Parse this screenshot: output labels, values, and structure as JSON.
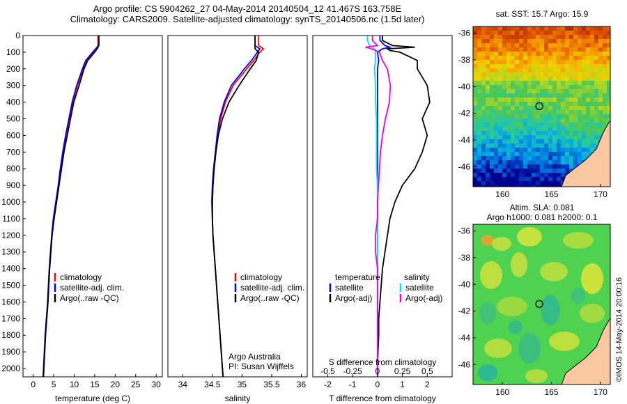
{
  "header": {
    "line1": "Argo profile: CS 5904262_27 04-May-2014 20140504_12 41.467S 163.758E",
    "line2": "Climatology: CARS2009. Satellite-adjusted climatology: synTS_20140506.nc (1.5d later)"
  },
  "depth_ticks": [
    "0",
    "100",
    "200",
    "300",
    "400",
    "500",
    "600",
    "700",
    "800",
    "900",
    "1000",
    "1100",
    "1200",
    "1300",
    "1400",
    "1500",
    "1600",
    "1700",
    "1800",
    "1900",
    "2000"
  ],
  "colors": {
    "climatology": "#ff0000",
    "satellite": "#0000ff",
    "argo": "#000000",
    "s_satellite": "#00e5ee",
    "s_argo": "#ee00ee"
  },
  "chart_data": [
    {
      "type": "line",
      "xlabel": "temperature (deg C)",
      "x_ticks": [
        "0",
        "5",
        "10",
        "15",
        "20",
        "25",
        "30"
      ],
      "xlim": [
        -2.5,
        31.5
      ],
      "ylim": [
        2050,
        0
      ],
      "legend": {
        "position": "lower-left",
        "entries": [
          "climatology",
          "satellite-adj. clim.",
          "Argo(..raw -QC)"
        ]
      },
      "depth": [
        0,
        60,
        80,
        100,
        150,
        200,
        300,
        400,
        500,
        600,
        700,
        800,
        900,
        1000,
        1100,
        1200,
        1300,
        1400,
        1500,
        1600,
        1700,
        1800,
        1900,
        2000,
        2050
      ],
      "series": [
        {
          "name": "climatology",
          "values": [
            15.8,
            15.8,
            15.3,
            14.8,
            13.0,
            12.2,
            10.8,
            9.6,
            8.8,
            8.0,
            7.3,
            6.7,
            6.2,
            5.6,
            5.0,
            4.6,
            4.3,
            4.0,
            3.8,
            3.6,
            3.3,
            3.0,
            2.8,
            2.6,
            2.5
          ]
        },
        {
          "name": "satellite-adj. clim.",
          "values": [
            16.0,
            16.0,
            15.2,
            14.5,
            12.8,
            12.0,
            10.6,
            9.5,
            8.7,
            7.9,
            7.2,
            6.6,
            6.1,
            5.5,
            4.9,
            4.5,
            4.2,
            3.9,
            3.7,
            3.5,
            3.2,
            2.9,
            2.7,
            2.5,
            2.4
          ]
        },
        {
          "name": "Argo(..raw -QC)",
          "values": [
            16.0,
            16.0,
            15.6,
            15.0,
            13.3,
            12.4,
            11.2,
            9.9,
            9.1,
            8.3,
            7.5,
            6.9,
            6.3,
            5.7,
            5.1,
            4.6,
            4.3,
            4.0,
            3.8,
            3.6,
            3.3,
            3.0,
            2.8,
            2.6,
            2.5
          ]
        }
      ]
    },
    {
      "type": "line",
      "xlabel": "salinity",
      "x_ticks": [
        "34",
        "34.5",
        "35",
        "35.5",
        "36"
      ],
      "xlim": [
        33.75,
        36.1
      ],
      "ylim": [
        2050,
        0
      ],
      "legend": {
        "position": "lower-right",
        "entries": [
          "climatology",
          "satellite-adj. clim.",
          "Argo(..raw -QC)"
        ]
      },
      "annotation": [
        "Argo Australia",
        "PI: Susan Wijffels"
      ],
      "depth": [
        0,
        60,
        80,
        100,
        150,
        200,
        300,
        400,
        500,
        600,
        700,
        800,
        900,
        1000,
        1100,
        1200,
        1300,
        1400,
        1500,
        1600,
        1700,
        1800,
        1900,
        2000,
        2050
      ],
      "series": [
        {
          "name": "climatology",
          "values": [
            35.28,
            35.28,
            35.36,
            35.3,
            35.2,
            35.08,
            34.85,
            34.72,
            34.64,
            34.59,
            34.56,
            34.53,
            34.51,
            34.5,
            34.5,
            34.51,
            34.53,
            34.55,
            34.57,
            34.59,
            34.61,
            34.63,
            34.65,
            34.67,
            34.68
          ]
        },
        {
          "name": "satellite-adj. clim.",
          "values": [
            35.22,
            35.22,
            35.3,
            35.26,
            35.16,
            35.04,
            34.82,
            34.7,
            34.62,
            34.58,
            34.55,
            34.52,
            34.5,
            34.49,
            34.5,
            34.51,
            34.53,
            34.55,
            34.57,
            34.59,
            34.61,
            34.63,
            34.65,
            34.67,
            34.68
          ]
        },
        {
          "name": "Argo(..raw -QC)",
          "values": [
            35.22,
            35.22,
            35.22,
            35.28,
            35.24,
            35.14,
            34.95,
            34.78,
            34.67,
            34.6,
            34.56,
            34.53,
            34.51,
            34.5,
            34.5,
            34.51,
            34.53,
            34.55,
            34.57,
            34.59,
            34.61,
            34.63,
            34.65,
            34.67,
            34.68
          ]
        }
      ]
    },
    {
      "type": "line",
      "xlabel": "T difference from climatology",
      "xlabel_top": "S difference from climatology",
      "x_ticks": [
        "-2",
        "-1",
        "0",
        "1",
        "2"
      ],
      "x_ticks_top": [
        "-0.5",
        "-0.25",
        "0",
        "0.25",
        "0.5"
      ],
      "xlim": [
        -2.6,
        3.0
      ],
      "ylim": [
        2050,
        0
      ],
      "legend": {
        "position": "lower-center",
        "temperature_title": "temperature",
        "salinity_title": "salinity",
        "temperature_entries": [
          "satellite",
          "Argo(-adj)"
        ],
        "salinity_entries": [
          "satellite",
          "Argo(-adj)"
        ]
      },
      "depth": [
        0,
        30,
        60,
        70,
        80,
        90,
        100,
        150,
        200,
        300,
        400,
        500,
        600,
        700,
        800,
        900,
        1000,
        1100,
        1200,
        1300,
        1400,
        1500,
        1600,
        1700,
        1800,
        1900,
        2000,
        2050
      ],
      "series": [
        {
          "name": "satellite",
          "group": "temperature",
          "values": [
            0.1,
            0.1,
            0.3,
            0.5,
            0.2,
            0.1,
            0.0,
            0.05,
            0.0,
            0.0,
            0.0,
            0.0,
            0.0,
            0.0,
            0.0,
            0.0,
            0.0,
            0.0,
            0.0,
            0.0,
            0.0,
            0.0,
            0.0,
            0.0,
            0.0,
            0.0,
            0.0,
            0.0
          ]
        },
        {
          "name": "Argo(-adj)",
          "group": "temperature",
          "values": [
            0.2,
            0.2,
            0.6,
            1.5,
            0.4,
            0.5,
            0.9,
            1.6,
            1.6,
            2.0,
            2.1,
            1.8,
            2.0,
            1.8,
            1.5,
            1.0,
            0.7,
            0.5,
            0.4,
            0.3,
            0.2,
            0.15,
            0.1,
            0.05,
            0.05,
            0.02,
            0.0,
            0.0
          ]
        },
        {
          "name": "satellite",
          "group": "salinity",
          "values": [
            -0.1,
            -0.1,
            -0.08,
            -0.05,
            -0.03,
            -0.02,
            -0.02,
            -0.02,
            -0.03,
            -0.02,
            -0.02,
            -0.01,
            -0.01,
            -0.01,
            -0.01,
            0.0,
            0.0,
            0.0,
            0.0,
            0.0,
            0.0,
            0.0,
            0.0,
            0.0,
            0.0,
            0.0,
            0.0,
            0.0
          ]
        },
        {
          "name": "Argo(-adj)",
          "group": "salinity",
          "values": [
            -0.05,
            -0.05,
            0.0,
            -0.12,
            -0.06,
            -0.02,
            0.02,
            0.05,
            0.1,
            0.13,
            0.12,
            0.08,
            0.05,
            0.03,
            0.02,
            0.01,
            0.0,
            0.0,
            -0.02,
            -0.02,
            0.0,
            0.0,
            0.0,
            0.0,
            0.0,
            0.0,
            0.0,
            0.0
          ]
        }
      ]
    },
    {
      "type": "heatmap",
      "title": "sat. SST: 15.7 Argo: 15.9",
      "x_ticks": [
        "160",
        "165",
        "170"
      ],
      "y_ticks": [
        "-36",
        "-38",
        "-40",
        "-42",
        "-44",
        "-46"
      ],
      "xlim": [
        157,
        171
      ],
      "ylim": [
        -47.5,
        -35.5
      ],
      "argo_position": [
        163.758,
        -41.467
      ]
    },
    {
      "type": "heatmap",
      "title": "Altim. SLA: 0.081",
      "subtitle": "Argo h1000: 0.081 h2000: 0.1",
      "x_ticks": [
        "160",
        "165",
        "170"
      ],
      "y_ticks": [
        "-36",
        "-38",
        "-40",
        "-42",
        "-44",
        "-46"
      ],
      "xlim": [
        157,
        171
      ],
      "ylim": [
        -47.5,
        -35.5
      ],
      "argo_position": [
        163.758,
        -41.467
      ]
    }
  ],
  "credit": "©IMOS 14-May-2014 20:00:16"
}
